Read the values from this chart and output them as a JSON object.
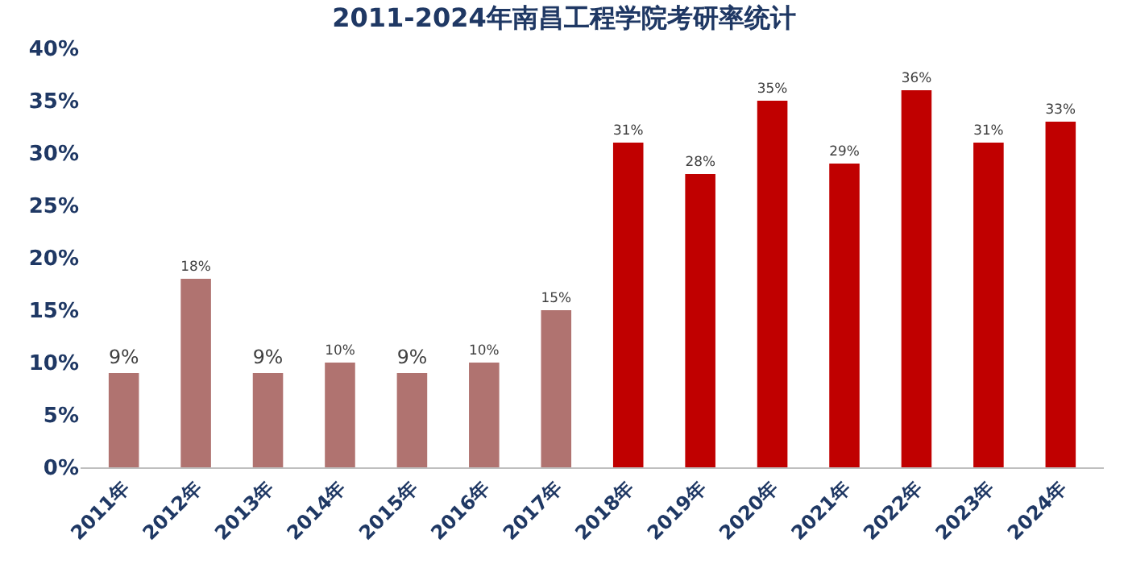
{
  "chart_data": {
    "type": "bar",
    "title": "2011-2024年南昌工程学院考研率统计",
    "categories": [
      "2011年",
      "2012年",
      "2013年",
      "2014年",
      "2015年",
      "2016年",
      "2017年",
      "2018年",
      "2019年",
      "2020年",
      "2021年",
      "2022年",
      "2023年",
      "2024年"
    ],
    "values": [
      9,
      18,
      9,
      10,
      9,
      10,
      15,
      31,
      28,
      35,
      29,
      36,
      31,
      33
    ],
    "value_labels": [
      "9%",
      "18%",
      "9%",
      "10%",
      "9%",
      "10%",
      "15%",
      "31%",
      "28%",
      "35%",
      "29%",
      "36%",
      "31%",
      "33%"
    ],
    "colors": [
      "#b07370",
      "#b07370",
      "#b07370",
      "#b07370",
      "#b07370",
      "#b07370",
      "#b07370",
      "#c00000",
      "#c00000",
      "#c00000",
      "#c00000",
      "#c00000",
      "#c00000",
      "#c00000"
    ],
    "ylim": [
      0,
      40
    ],
    "yticks": [
      {
        "value": 0,
        "label": "0%"
      },
      {
        "value": 5,
        "label": "5%"
      },
      {
        "value": 10,
        "label": "10%"
      },
      {
        "value": 15,
        "label": "15%"
      },
      {
        "value": 20,
        "label": "20%"
      },
      {
        "value": 25,
        "label": "25%"
      },
      {
        "value": 30,
        "label": "30%"
      },
      {
        "value": 35,
        "label": "35%"
      },
      {
        "value": 40,
        "label": "40%"
      }
    ],
    "grid": false
  }
}
